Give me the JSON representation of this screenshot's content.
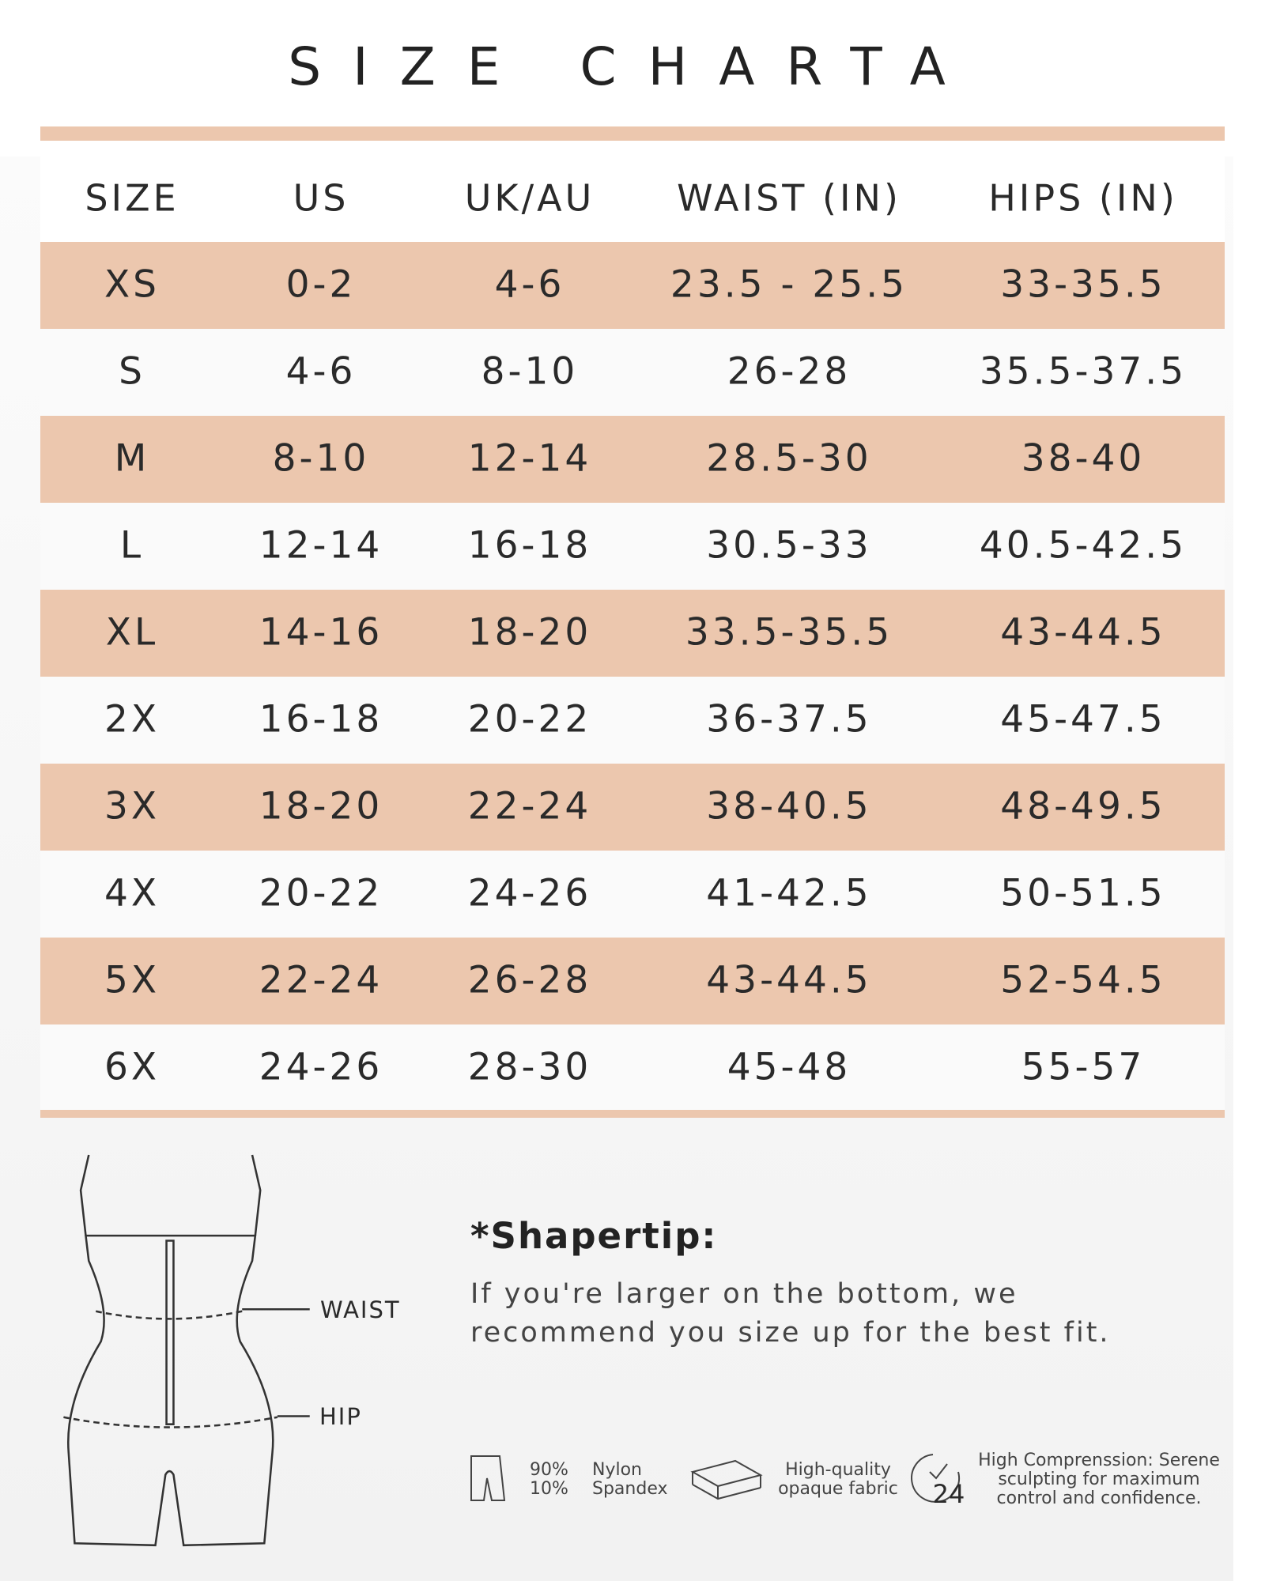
{
  "header": {
    "title": "SIZE CHARTA"
  },
  "table": {
    "columns": [
      "SIZE",
      "US",
      "UK/AU",
      "WAIST (IN)",
      "HIPS (IN)"
    ],
    "rows": [
      [
        "XS",
        "0-2",
        "4-6",
        "23.5 - 25.5",
        "33-35.5"
      ],
      [
        "S",
        "4-6",
        "8-10",
        "26-28",
        "35.5-37.5"
      ],
      [
        "M",
        "8-10",
        "12-14",
        "28.5-30",
        "38-40"
      ],
      [
        "L",
        "12-14",
        "16-18",
        "30.5-33",
        "40.5-42.5"
      ],
      [
        "XL",
        "14-16",
        "18-20",
        "33.5-35.5",
        "43-44.5"
      ],
      [
        "2X",
        "16-18",
        "20-22",
        "36-37.5",
        "45-47.5"
      ],
      [
        "3X",
        "18-20",
        "22-24",
        "38-40.5",
        "48-49.5"
      ],
      [
        "4X",
        "20-22",
        "24-26",
        "41-42.5",
        "50-51.5"
      ],
      [
        "5X",
        "22-24",
        "26-28",
        "43-44.5",
        "52-54.5"
      ],
      [
        "6X",
        "24-26",
        "28-30",
        "45-48",
        "55-57"
      ]
    ]
  },
  "figure": {
    "waist_label": "WAIST",
    "hip_label": "HIP"
  },
  "tip": {
    "title": "*Shapertip:",
    "lines": [
      "If you're larger on the bottom, we",
      "recommend you size up for the best fit."
    ]
  },
  "features": {
    "fabric": {
      "percents": [
        "90%",
        "10%"
      ],
      "materials": [
        "Nylon",
        "Spandex"
      ]
    },
    "quality": [
      "High-quality",
      "opaque fabric"
    ],
    "compression": {
      "icon_number": "24",
      "lines": [
        "High Comprenssion: Serene",
        "sculpting for maximum",
        "control and confidence."
      ]
    }
  }
}
